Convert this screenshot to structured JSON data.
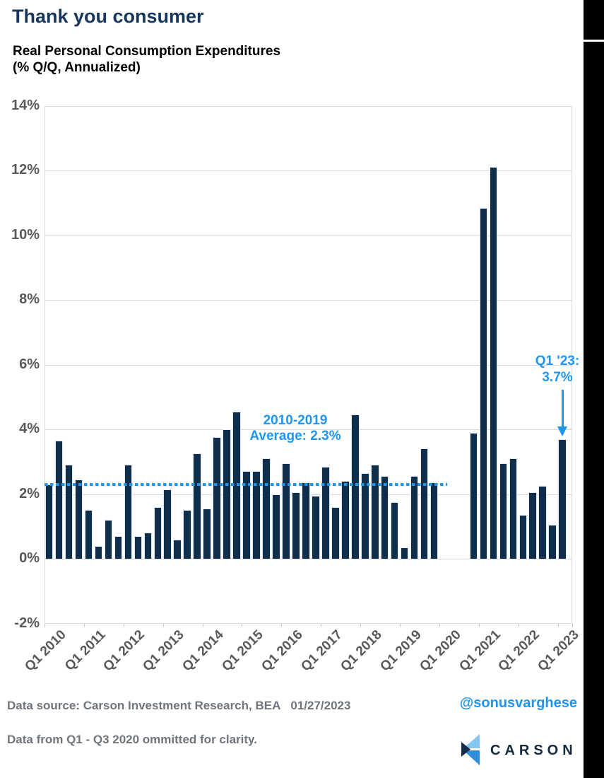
{
  "page": {
    "title": "Thank you consumer",
    "subtitle_line1": "Real Personal Consumption Expenditures",
    "subtitle_line2": "(% Q/Q, Annualized)"
  },
  "colors": {
    "title_navy": "#16365c",
    "bar_navy": "#0f2e4c",
    "accent_blue": "#1e96f0",
    "axis_gray": "#595959",
    "footer_gray": "#6e757c",
    "grid_gray": "#d9d9d9"
  },
  "chart_data": {
    "type": "bar",
    "title": "Thank you consumer",
    "subtitle": "Real Personal Consumption Expenditures (% Q/Q, Annualized)",
    "ylabel": "",
    "xlabel": "",
    "ylim": [
      -2,
      14
    ],
    "grid": true,
    "yticks": [
      14,
      12,
      10,
      8,
      6,
      4,
      2,
      0,
      -2
    ],
    "ytick_labels": [
      "14%",
      "12%",
      "10%",
      "8%",
      "6%",
      "4%",
      "2%",
      "0%",
      "-2%"
    ],
    "xtick_labels": [
      "Q1 2010",
      "Q1 2011",
      "Q1 2012",
      "Q1 2013",
      "Q1 2014",
      "Q1 2015",
      "Q1 2016",
      "Q1 2017",
      "Q1 2018",
      "Q1 2019",
      "Q1 2020",
      "Q1 2021",
      "Q1 2022",
      "Q1 2023"
    ],
    "categories": [
      "Q1 2010",
      "Q2 2010",
      "Q3 2010",
      "Q4 2010",
      "Q1 2011",
      "Q2 2011",
      "Q3 2011",
      "Q4 2011",
      "Q1 2012",
      "Q2 2012",
      "Q3 2012",
      "Q4 2012",
      "Q1 2013",
      "Q2 2013",
      "Q3 2013",
      "Q4 2013",
      "Q1 2014",
      "Q2 2014",
      "Q3 2014",
      "Q4 2014",
      "Q1 2015",
      "Q2 2015",
      "Q3 2015",
      "Q4 2015",
      "Q1 2016",
      "Q2 2016",
      "Q3 2016",
      "Q4 2016",
      "Q1 2017",
      "Q2 2017",
      "Q3 2017",
      "Q4 2017",
      "Q1 2018",
      "Q2 2018",
      "Q3 2018",
      "Q4 2018",
      "Q1 2019",
      "Q2 2019",
      "Q3 2019",
      "Q4 2019",
      "Q1 2020",
      "Q2 2020",
      "Q3 2020",
      "Q4 2020",
      "Q1 2021",
      "Q2 2021",
      "Q3 2021",
      "Q4 2021",
      "Q1 2022",
      "Q2 2022",
      "Q3 2022",
      "Q4 2022",
      "Q1 2023"
    ],
    "values": [
      2.3,
      3.65,
      2.9,
      2.45,
      1.5,
      0.4,
      1.2,
      0.7,
      2.9,
      0.7,
      0.8,
      1.6,
      2.15,
      0.6,
      1.5,
      3.25,
      1.55,
      3.75,
      4.0,
      4.55,
      2.7,
      2.7,
      3.1,
      2.0,
      2.95,
      2.05,
      2.35,
      1.95,
      2.85,
      1.6,
      2.4,
      4.45,
      2.65,
      2.9,
      2.55,
      1.75,
      0.35,
      2.55,
      3.4,
      2.35,
      null,
      null,
      null,
      3.9,
      10.85,
      12.1,
      2.95,
      3.1,
      1.35,
      2.05,
      2.25,
      1.05,
      3.7
    ],
    "omitted_categories": [
      "Q1 2020",
      "Q2 2020",
      "Q3 2020"
    ],
    "average_line": {
      "value": 2.3,
      "style": "dotted",
      "label_line1": "2010-2019",
      "label_line2": "Average: 2.3%"
    },
    "callout": {
      "line1": "Q1 '23:",
      "line2": "3.7%",
      "target_category": "Q1 2023",
      "target_value": 3.7
    }
  },
  "footer": {
    "source_label": "Data source: Carson Investment Research, BEA",
    "source_date": "01/27/2023",
    "note": "Data from Q1 - Q3 2020 ommitted for clarity.",
    "handle": "@sonusvarghese",
    "logo_text": "CARSON"
  }
}
